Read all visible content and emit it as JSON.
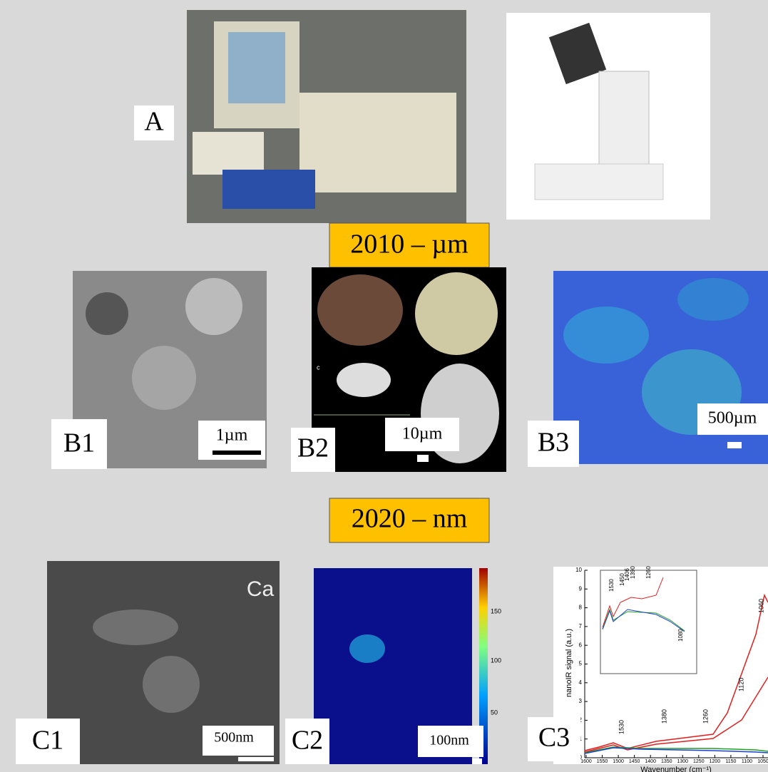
{
  "panel_a": {
    "label": "A"
  },
  "sections": [
    {
      "title": "2010 – µm"
    },
    {
      "title": "2020 – nm"
    }
  ],
  "b1": {
    "label": "B1",
    "scale": "1µm"
  },
  "b2": {
    "label": "B2",
    "scale": "10µm",
    "sub_label": "c"
  },
  "b3": {
    "label": "B3",
    "scale": "500µm"
  },
  "c1": {
    "label": "C1",
    "scale": "500nm",
    "element": "Ca"
  },
  "c2": {
    "label": "C2",
    "scale": "100nm",
    "colorbar_ticks": [
      "150",
      "100",
      "50"
    ]
  },
  "c3": {
    "label": "C3",
    "y_axis_label": "nanoIR signal (a.u.)",
    "x_axis_label": "Wavenumber (cm⁻¹)",
    "yticks": [
      0,
      1,
      2,
      3,
      4,
      5,
      6,
      7,
      8,
      9,
      10
    ],
    "xticks": [
      1600,
      1550,
      1500,
      1450,
      1400,
      1350,
      1300,
      1250,
      1200,
      1150,
      1100,
      1050
    ],
    "peaks": [
      "1530",
      "1380",
      "1260",
      "1120",
      "1060"
    ],
    "inset_peaks": [
      "1530",
      "1450",
      "1406",
      "1390",
      "1260",
      "1080"
    ]
  }
}
